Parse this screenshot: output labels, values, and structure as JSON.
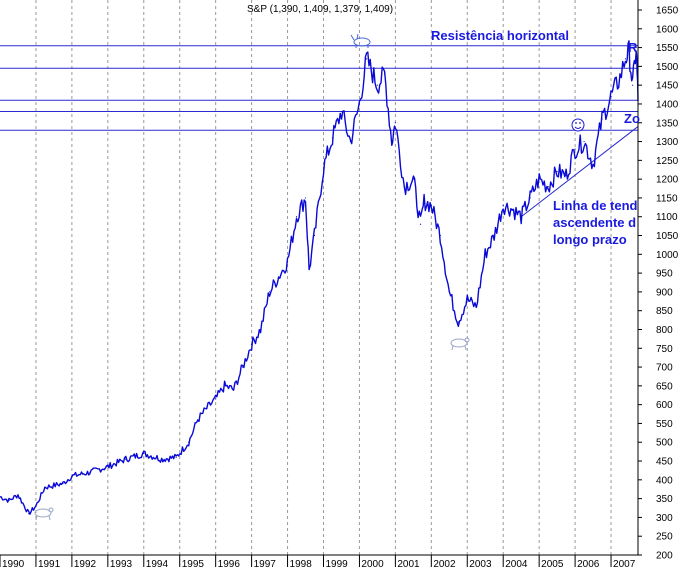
{
  "header": {
    "ohlc_label": "S&P (1,390, 1,409, 1,379, 1,409)"
  },
  "annotations": {
    "horizontal_resistance": "Resistência horizontal",
    "trend_line_1": "Linha de tend",
    "trend_line_2": "ascendente d",
    "trend_line_3": "longo prazo",
    "marker_r": "R",
    "marker_zo": "Zo"
  },
  "colors": {
    "price_line": "#0a0ad6",
    "resistance_lines": "#2b2bd0",
    "trend_line": "#2b2bd0",
    "grid": "#9a9a9a",
    "annotation_text": "#1a1adf"
  },
  "chart_data": {
    "type": "line",
    "title": "S&P (1,390, 1,409, 1,379, 1,409)",
    "xlabel": "",
    "ylabel": "",
    "xlim": [
      1990.0,
      2007.75
    ],
    "ylim": [
      200,
      1650
    ],
    "grid": true,
    "x_ticks": [
      "1990",
      "1991",
      "1992",
      "1993",
      "1994",
      "1995",
      "1996",
      "1997",
      "1998",
      "1999",
      "2000",
      "2001",
      "2002",
      "2003",
      "2004",
      "2005",
      "2006",
      "2007"
    ],
    "y_ticks": [
      200,
      250,
      300,
      350,
      400,
      450,
      500,
      550,
      600,
      650,
      700,
      750,
      800,
      850,
      900,
      950,
      1000,
      1050,
      1100,
      1150,
      1200,
      1250,
      1300,
      1350,
      1400,
      1450,
      1500,
      1550,
      1600,
      1650
    ],
    "series": [
      {
        "x": [
          1990.0,
          1990.25,
          1990.5,
          1990.8,
          1991.0,
          1991.25,
          1991.5,
          1991.75,
          1992.0,
          1992.5,
          1993.0,
          1993.5,
          1994.0,
          1994.5,
          1994.9,
          1995.25,
          1995.5,
          1995.75,
          1996.0,
          1996.25,
          1996.5,
          1996.75,
          1997.0,
          1997.25,
          1997.5,
          1997.75,
          1998.0,
          1998.25,
          1998.5,
          1998.6,
          1998.75,
          1999.0,
          1999.25,
          1999.5,
          1999.75,
          2000.0,
          2000.2,
          2000.5,
          2000.7,
          2000.9,
          2001.0,
          2001.25,
          2001.5,
          2001.7,
          2001.8,
          2002.0,
          2002.25,
          2002.5,
          2002.75,
          2003.0,
          2003.25,
          2003.5,
          2003.75,
          2004.0,
          2004.25,
          2004.5,
          2004.75,
          2005.0,
          2005.25,
          2005.5,
          2005.75,
          2006.0,
          2006.25,
          2006.5,
          2006.75,
          2007.0,
          2007.25,
          2007.4,
          2007.5,
          2007.6,
          2007.7,
          2007.75
        ],
        "y": [
          355,
          345,
          360,
          310,
          330,
          380,
          385,
          390,
          410,
          420,
          435,
          455,
          470,
          455,
          460,
          500,
          560,
          590,
          615,
          650,
          640,
          700,
          760,
          800,
          900,
          940,
          980,
          1100,
          1150,
          960,
          1050,
          1230,
          1310,
          1380,
          1300,
          1400,
          1520,
          1450,
          1480,
          1300,
          1350,
          1180,
          1200,
          1080,
          1140,
          1130,
          1050,
          900,
          820,
          880,
          860,
          1000,
          1050,
          1130,
          1120,
          1100,
          1150,
          1200,
          1180,
          1220,
          1210,
          1280,
          1300,
          1240,
          1360,
          1420,
          1470,
          1520,
          1540,
          1450,
          1550,
          1409
        ]
      }
    ],
    "horizontal_lines": [
      1555,
      1495,
      1410,
      1380,
      1330
    ],
    "trend_line": {
      "x": [
        2004.5,
        2007.75
      ],
      "y": [
        1100,
        1340
      ]
    }
  }
}
